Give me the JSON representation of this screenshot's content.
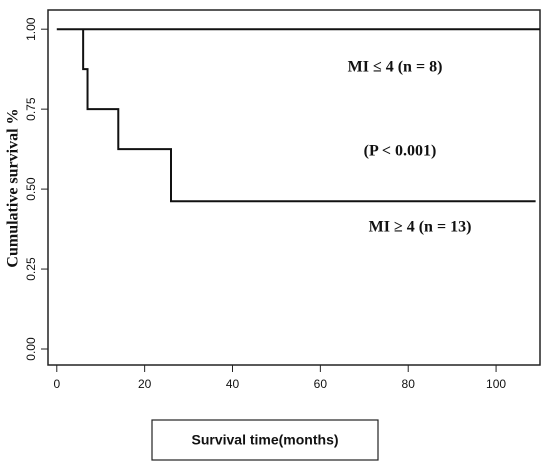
{
  "chart_data": {
    "type": "line",
    "step": true,
    "xlabel": "Survival time(months)",
    "ylabel": "Cumulative survival %",
    "annotation": "(P < 0.001)",
    "xlim": [
      -2,
      110
    ],
    "ylim": [
      -0.05,
      1.06
    ],
    "xticks": [
      0,
      20,
      40,
      60,
      80,
      100
    ],
    "yticks": [
      {
        "value": 0,
        "label": "0.00"
      },
      0.25,
      {
        "value": 0.5,
        "label": "0.50"
      },
      0.75,
      {
        "value": 1,
        "label": "1.00"
      }
    ],
    "series": [
      {
        "name": "MI ≤ 4 (n = 8)",
        "color": "#111111",
        "x": [
          0,
          110
        ],
        "values": [
          1,
          1
        ]
      },
      {
        "name": "MI ≥ 4 (n = 13)",
        "color": "#111111",
        "x": [
          6,
          6,
          7,
          7,
          14,
          14,
          26,
          26,
          109
        ],
        "values": [
          1,
          0.875,
          0.875,
          0.75,
          0.75,
          0.625,
          0.625,
          0.462,
          0.462
        ]
      }
    ]
  }
}
